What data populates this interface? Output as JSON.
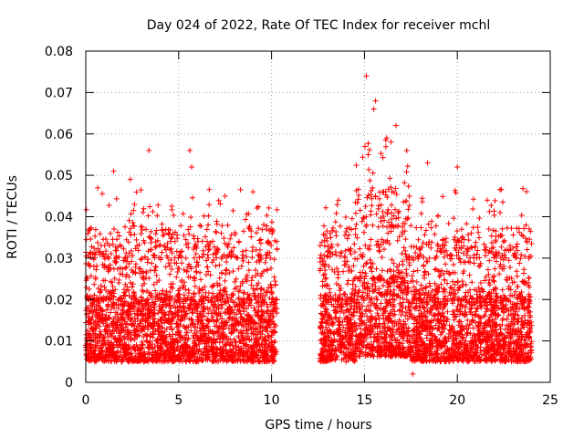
{
  "chart_data": {
    "type": "scatter",
    "title": "Day 024 of 2022, Rate Of TEC Index for receiver mchl",
    "xlabel": "GPS time / hours",
    "ylabel": "ROTI / TECUs",
    "xlim": [
      0,
      25
    ],
    "ylim": [
      0,
      0.08
    ],
    "x_ticks": [
      "0",
      "5",
      "10",
      "15",
      "20",
      "25"
    ],
    "x_tick_values": [
      0,
      5,
      10,
      15,
      20,
      25
    ],
    "y_ticks": [
      "0",
      "0.01",
      "0.02",
      "0.03",
      "0.04",
      "0.05",
      "0.06",
      "0.07",
      "0.08"
    ],
    "y_tick_values": [
      0,
      0.01,
      0.02,
      0.03,
      0.04,
      0.05,
      0.06,
      0.07,
      0.08
    ],
    "grid": true,
    "marker": "+",
    "color": "#ff0000",
    "series": [
      {
        "name": "ROTI",
        "coverage_hours": [
          [
            0,
            10.3
          ],
          [
            12.6,
            24
          ]
        ],
        "typical_range": [
          0.005,
          0.02
        ],
        "notable_points": [
          {
            "x": 1.5,
            "y": 0.051
          },
          {
            "x": 2.4,
            "y": 0.049
          },
          {
            "x": 3.4,
            "y": 0.056
          },
          {
            "x": 5.6,
            "y": 0.056
          },
          {
            "x": 5.7,
            "y": 0.052
          },
          {
            "x": 7.5,
            "y": 0.045
          },
          {
            "x": 9.0,
            "y": 0.046
          },
          {
            "x": 15.1,
            "y": 0.074
          },
          {
            "x": 15.6,
            "y": 0.068
          },
          {
            "x": 15.5,
            "y": 0.066
          },
          {
            "x": 16.2,
            "y": 0.059
          },
          {
            "x": 16.7,
            "y": 0.062
          },
          {
            "x": 15.2,
            "y": 0.055
          },
          {
            "x": 18.4,
            "y": 0.053
          },
          {
            "x": 20.0,
            "y": 0.052
          },
          {
            "x": 22.3,
            "y": 0.041
          },
          {
            "x": 23.7,
            "y": 0.038
          },
          {
            "x": 17.6,
            "y": 0.002
          }
        ]
      }
    ]
  }
}
